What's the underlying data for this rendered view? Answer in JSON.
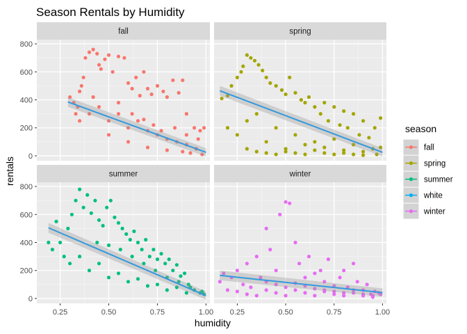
{
  "chart_data": {
    "type": "scatter",
    "title": "Season Rentals by Humidity",
    "xlabel": "humidity",
    "ylabel": "rentals",
    "xlim": [
      0.13,
      1.02
    ],
    "ylim": [
      -35,
      830
    ],
    "x_ticks": [
      0.25,
      0.5,
      0.75,
      1.0
    ],
    "x_tick_labels": [
      "0.25",
      "0.50",
      "0.75",
      "1.00"
    ],
    "y_ticks": [
      0,
      200,
      400,
      600,
      800
    ],
    "y_tick_labels": [
      "0",
      "200",
      "400",
      "600",
      "800"
    ],
    "grid": true,
    "legend": {
      "title": "season",
      "placement": "right",
      "entries": [
        {
          "label": "fall",
          "color": "#F8766D"
        },
        {
          "label": "spring",
          "color": "#A3A500"
        },
        {
          "label": "summer",
          "color": "#00BF7D"
        },
        {
          "label": "white",
          "color": "#00B0F6"
        },
        {
          "label": "winter",
          "color": "#E76BF3"
        }
      ]
    },
    "panels": [
      {
        "name": "fall",
        "color": "#F8766D",
        "x_range": [
          0.29,
          1.0
        ],
        "trend": {
          "x": [
            0.29,
            1.0
          ],
          "y": [
            385,
            25
          ]
        },
        "points": [
          [
            0.3,
            420
          ],
          [
            0.32,
            380
          ],
          [
            0.33,
            300
          ],
          [
            0.34,
            350
          ],
          [
            0.35,
            460
          ],
          [
            0.36,
            500
          ],
          [
            0.37,
            560
          ],
          [
            0.38,
            700
          ],
          [
            0.4,
            740
          ],
          [
            0.42,
            760
          ],
          [
            0.44,
            730
          ],
          [
            0.45,
            650
          ],
          [
            0.46,
            620
          ],
          [
            0.48,
            690
          ],
          [
            0.5,
            720
          ],
          [
            0.52,
            600
          ],
          [
            0.55,
            710
          ],
          [
            0.58,
            700
          ],
          [
            0.6,
            520
          ],
          [
            0.62,
            480
          ],
          [
            0.64,
            560
          ],
          [
            0.66,
            430
          ],
          [
            0.68,
            600
          ],
          [
            0.7,
            480
          ],
          [
            0.72,
            440
          ],
          [
            0.75,
            500
          ],
          [
            0.78,
            460
          ],
          [
            0.8,
            420
          ],
          [
            0.83,
            540
          ],
          [
            0.86,
            450
          ],
          [
            0.88,
            540
          ],
          [
            0.9,
            300
          ],
          [
            0.94,
            200
          ],
          [
            0.97,
            180
          ],
          [
            0.99,
            200
          ],
          [
            0.4,
            300
          ],
          [
            0.45,
            350
          ],
          [
            0.5,
            250
          ],
          [
            0.55,
            300
          ],
          [
            0.6,
            200
          ],
          [
            0.65,
            250
          ],
          [
            0.7,
            180
          ],
          [
            0.75,
            150
          ],
          [
            0.8,
            120
          ],
          [
            0.85,
            100
          ],
          [
            0.9,
            80
          ],
          [
            0.95,
            50
          ],
          [
            0.35,
            250
          ],
          [
            0.5,
            150
          ],
          [
            0.6,
            100
          ],
          [
            0.7,
            60
          ],
          [
            0.8,
            40
          ],
          [
            0.88,
            30
          ],
          [
            0.92,
            20
          ],
          [
            0.98,
            10
          ],
          [
            0.42,
            420
          ],
          [
            0.55,
            380
          ],
          [
            0.62,
            300
          ],
          [
            0.68,
            260
          ],
          [
            0.73,
            220
          ],
          [
            0.77,
            180
          ],
          [
            0.84,
            200
          ],
          [
            0.9,
            150
          ],
          [
            0.96,
            120
          ]
        ]
      },
      {
        "name": "spring",
        "color": "#A3A500",
        "x_range": [
          0.16,
          1.0
        ],
        "trend": {
          "x": [
            0.16,
            1.0
          ],
          "y": [
            465,
            25
          ]
        },
        "points": [
          [
            0.17,
            410
          ],
          [
            0.2,
            430
          ],
          [
            0.22,
            500
          ],
          [
            0.25,
            560
          ],
          [
            0.27,
            600
          ],
          [
            0.28,
            640
          ],
          [
            0.3,
            720
          ],
          [
            0.32,
            700
          ],
          [
            0.34,
            680
          ],
          [
            0.36,
            650
          ],
          [
            0.38,
            610
          ],
          [
            0.4,
            560
          ],
          [
            0.42,
            520
          ],
          [
            0.45,
            500
          ],
          [
            0.48,
            470
          ],
          [
            0.5,
            440
          ],
          [
            0.52,
            560
          ],
          [
            0.55,
            450
          ],
          [
            0.58,
            400
          ],
          [
            0.6,
            380
          ],
          [
            0.62,
            420
          ],
          [
            0.65,
            350
          ],
          [
            0.68,
            300
          ],
          [
            0.7,
            380
          ],
          [
            0.72,
            250
          ],
          [
            0.75,
            350
          ],
          [
            0.78,
            220
          ],
          [
            0.8,
            320
          ],
          [
            0.82,
            200
          ],
          [
            0.85,
            300
          ],
          [
            0.88,
            150
          ],
          [
            0.9,
            250
          ],
          [
            0.93,
            130
          ],
          [
            0.96,
            200
          ],
          [
            0.99,
            270
          ],
          [
            0.2,
            200
          ],
          [
            0.25,
            150
          ],
          [
            0.3,
            250
          ],
          [
            0.35,
            300
          ],
          [
            0.4,
            100
          ],
          [
            0.45,
            200
          ],
          [
            0.5,
            50
          ],
          [
            0.55,
            150
          ],
          [
            0.6,
            80
          ],
          [
            0.65,
            100
          ],
          [
            0.7,
            60
          ],
          [
            0.75,
            120
          ],
          [
            0.8,
            40
          ],
          [
            0.85,
            80
          ],
          [
            0.9,
            30
          ],
          [
            0.95,
            50
          ],
          [
            0.99,
            60
          ],
          [
            0.3,
            50
          ],
          [
            0.35,
            30
          ],
          [
            0.4,
            20
          ],
          [
            0.45,
            10
          ],
          [
            0.5,
            30
          ],
          [
            0.55,
            20
          ],
          [
            0.6,
            10
          ],
          [
            0.65,
            40
          ],
          [
            0.7,
            20
          ],
          [
            0.75,
            10
          ],
          [
            0.8,
            20
          ],
          [
            0.85,
            10
          ],
          [
            0.9,
            5
          ],
          [
            0.97,
            10
          ]
        ]
      },
      {
        "name": "summer",
        "color": "#00BF7D",
        "x_range": [
          0.19,
          1.0
        ],
        "trend": {
          "x": [
            0.19,
            1.0
          ],
          "y": [
            505,
            20
          ]
        },
        "points": [
          [
            0.19,
            400
          ],
          [
            0.21,
            350
          ],
          [
            0.23,
            550
          ],
          [
            0.25,
            400
          ],
          [
            0.27,
            300
          ],
          [
            0.29,
            500
          ],
          [
            0.31,
            600
          ],
          [
            0.33,
            700
          ],
          [
            0.35,
            780
          ],
          [
            0.37,
            650
          ],
          [
            0.39,
            740
          ],
          [
            0.41,
            610
          ],
          [
            0.43,
            700
          ],
          [
            0.45,
            560
          ],
          [
            0.47,
            520
          ],
          [
            0.49,
            650
          ],
          [
            0.51,
            700
          ],
          [
            0.53,
            580
          ],
          [
            0.55,
            540
          ],
          [
            0.57,
            500
          ],
          [
            0.59,
            460
          ],
          [
            0.61,
            420
          ],
          [
            0.63,
            480
          ],
          [
            0.65,
            400
          ],
          [
            0.67,
            350
          ],
          [
            0.69,
            420
          ],
          [
            0.71,
            300
          ],
          [
            0.73,
            350
          ],
          [
            0.75,
            280
          ],
          [
            0.77,
            320
          ],
          [
            0.79,
            250
          ],
          [
            0.81,
            280
          ],
          [
            0.83,
            200
          ],
          [
            0.85,
            240
          ],
          [
            0.87,
            160
          ],
          [
            0.89,
            180
          ],
          [
            0.91,
            100
          ],
          [
            0.94,
            60
          ],
          [
            0.97,
            40
          ],
          [
            0.99,
            30
          ],
          [
            0.3,
            250
          ],
          [
            0.35,
            300
          ],
          [
            0.4,
            200
          ],
          [
            0.45,
            250
          ],
          [
            0.5,
            150
          ],
          [
            0.55,
            180
          ],
          [
            0.6,
            120
          ],
          [
            0.65,
            140
          ],
          [
            0.7,
            90
          ],
          [
            0.75,
            100
          ],
          [
            0.8,
            60
          ],
          [
            0.85,
            80
          ],
          [
            0.9,
            40
          ],
          [
            0.44,
            400
          ],
          [
            0.5,
            380
          ],
          [
            0.56,
            350
          ],
          [
            0.62,
            300
          ],
          [
            0.68,
            250
          ],
          [
            0.74,
            200
          ],
          [
            0.8,
            150
          ],
          [
            0.86,
            120
          ],
          [
            0.92,
            80
          ],
          [
            0.98,
            50
          ]
        ]
      },
      {
        "name": "winter",
        "color": "#E76BF3",
        "x_range": [
          0.16,
          1.0
        ],
        "trend": {
          "x": [
            0.16,
            1.0
          ],
          "y": [
            165,
            42
          ]
        },
        "points": [
          [
            0.16,
            120
          ],
          [
            0.18,
            180
          ],
          [
            0.2,
            60
          ],
          [
            0.22,
            150
          ],
          [
            0.25,
            200
          ],
          [
            0.28,
            100
          ],
          [
            0.3,
            250
          ],
          [
            0.32,
            80
          ],
          [
            0.35,
            300
          ],
          [
            0.37,
            150
          ],
          [
            0.4,
            500
          ],
          [
            0.42,
            350
          ],
          [
            0.45,
            200
          ],
          [
            0.47,
            600
          ],
          [
            0.5,
            690
          ],
          [
            0.52,
            680
          ],
          [
            0.55,
            400
          ],
          [
            0.57,
            250
          ],
          [
            0.6,
            150
          ],
          [
            0.62,
            300
          ],
          [
            0.65,
            180
          ],
          [
            0.68,
            200
          ],
          [
            0.7,
            120
          ],
          [
            0.72,
            280
          ],
          [
            0.75,
            90
          ],
          [
            0.78,
            150
          ],
          [
            0.8,
            200
          ],
          [
            0.82,
            80
          ],
          [
            0.85,
            250
          ],
          [
            0.87,
            120
          ],
          [
            0.9,
            60
          ],
          [
            0.92,
            100
          ],
          [
            0.94,
            30
          ],
          [
            0.96,
            50
          ],
          [
            0.98,
            40
          ],
          [
            0.25,
            50
          ],
          [
            0.3,
            30
          ],
          [
            0.35,
            20
          ],
          [
            0.4,
            60
          ],
          [
            0.45,
            40
          ],
          [
            0.5,
            20
          ],
          [
            0.55,
            60
          ],
          [
            0.6,
            40
          ],
          [
            0.65,
            20
          ],
          [
            0.7,
            50
          ],
          [
            0.75,
            30
          ],
          [
            0.8,
            20
          ],
          [
            0.85,
            40
          ],
          [
            0.9,
            20
          ],
          [
            0.95,
            10
          ],
          [
            0.99,
            30
          ],
          [
            0.4,
            120
          ],
          [
            0.45,
            100
          ],
          [
            0.5,
            80
          ],
          [
            0.55,
            110
          ],
          [
            0.6,
            90
          ],
          [
            0.65,
            70
          ],
          [
            0.7,
            60
          ],
          [
            0.75,
            50
          ],
          [
            0.8,
            40
          ],
          [
            0.85,
            60
          ],
          [
            0.9,
            30
          ],
          [
            0.95,
            20
          ]
        ]
      }
    ]
  }
}
